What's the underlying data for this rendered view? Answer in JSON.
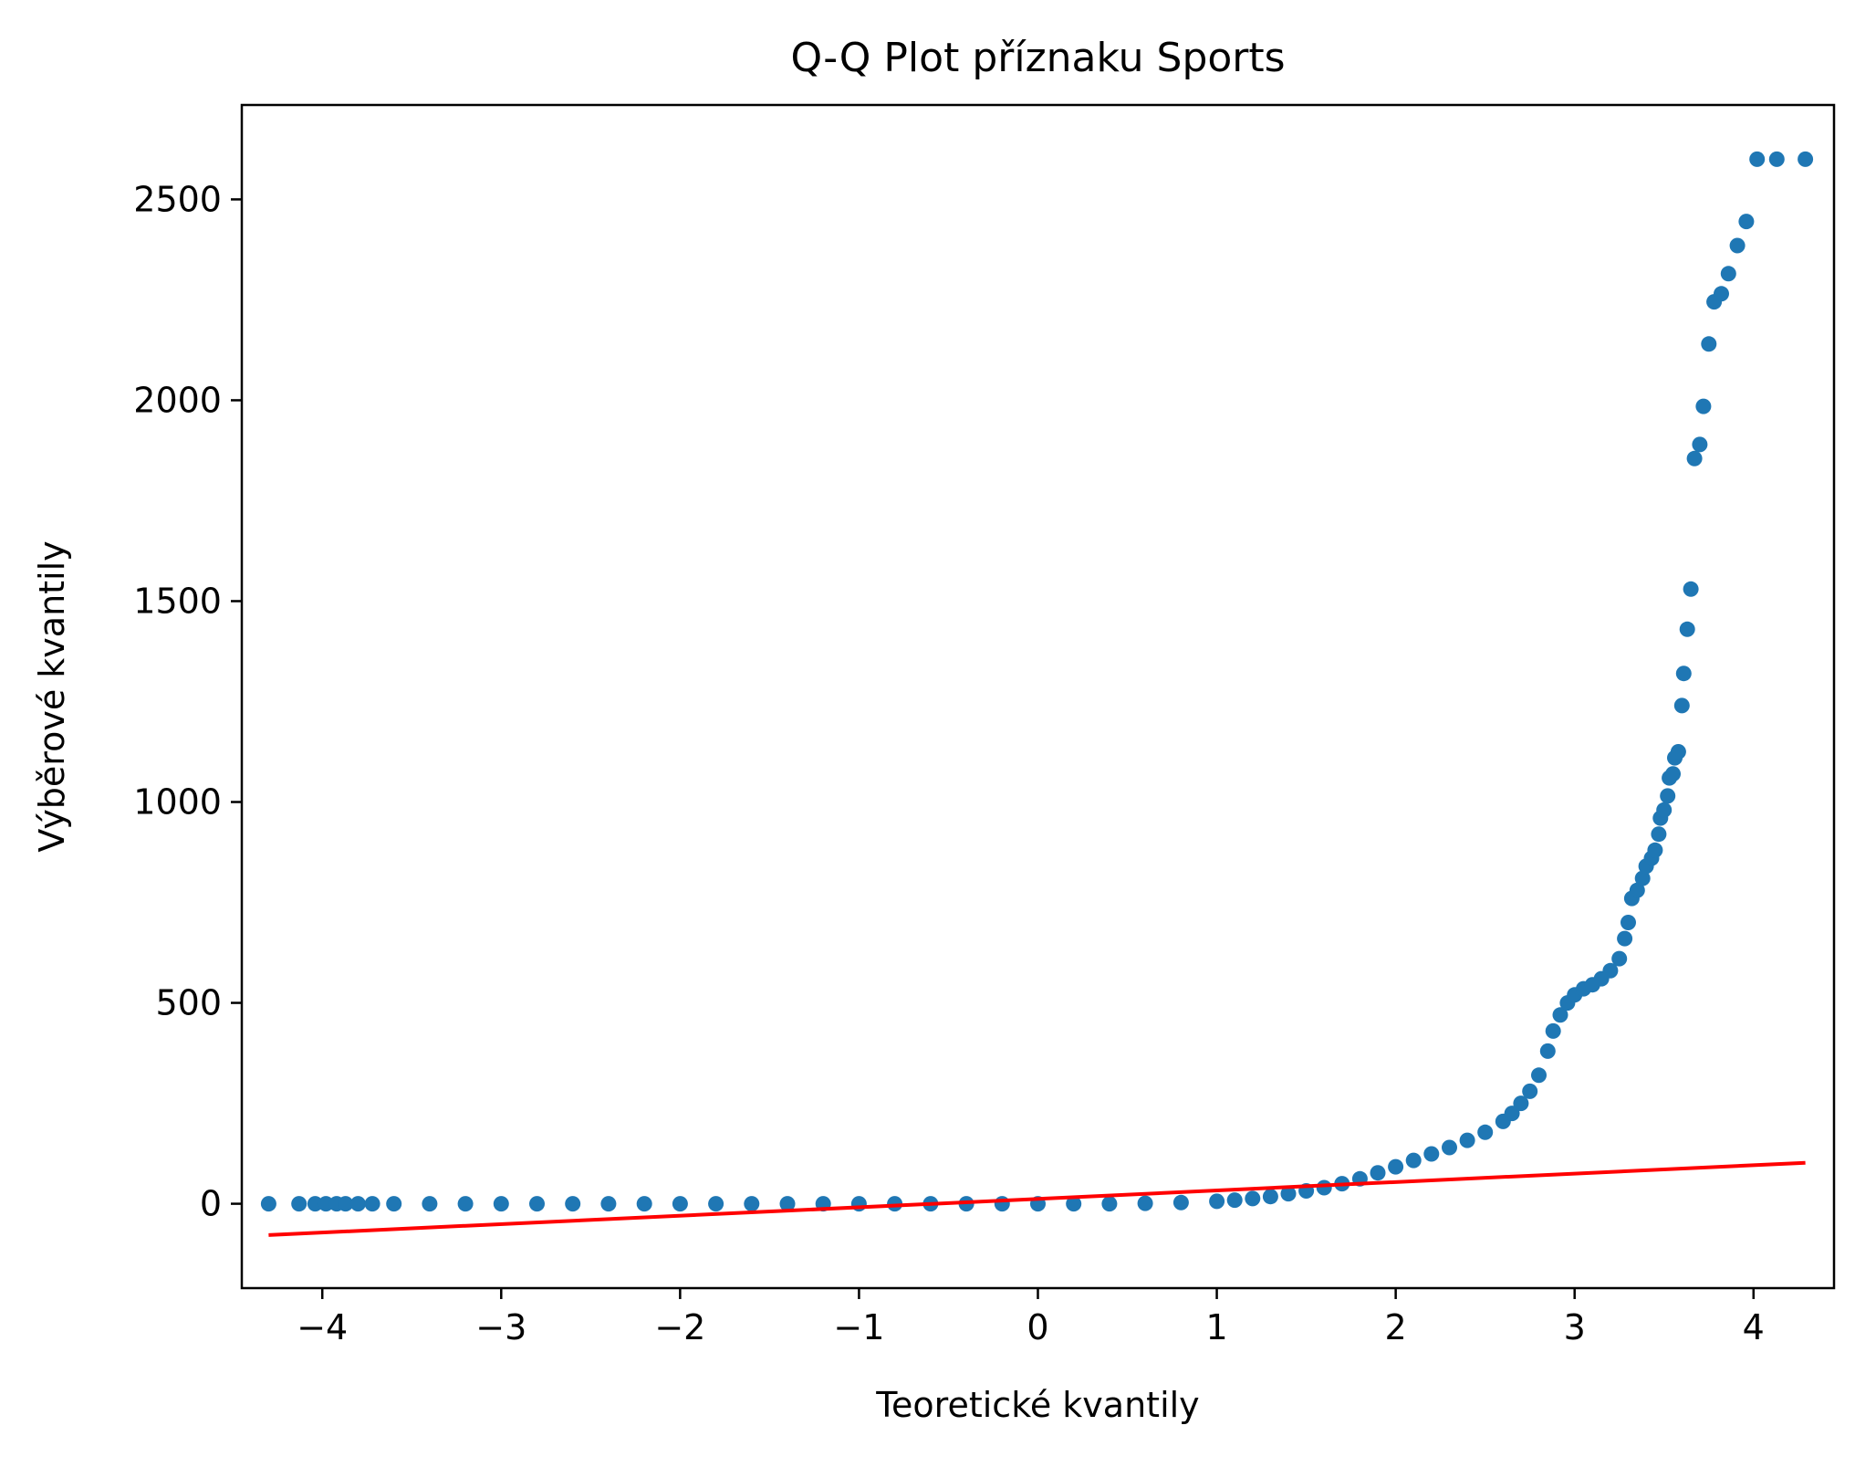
{
  "chart_data": {
    "type": "scatter",
    "title": "Q-Q Plot příznaku Sports",
    "xlabel": "Teoretické kvantily",
    "ylabel": "Výběrové kvantily",
    "xlim": [
      -4.45,
      4.45
    ],
    "ylim": [
      -210,
      2735
    ],
    "xticks": [
      -4,
      -3,
      -2,
      -1,
      0,
      1,
      2,
      3,
      4
    ],
    "xtick_labels": [
      "−4",
      "−3",
      "−2",
      "−1",
      "0",
      "1",
      "2",
      "3",
      "4"
    ],
    "yticks": [
      0,
      500,
      1000,
      1500,
      2000,
      2500
    ],
    "ytick_labels": [
      "0",
      "500",
      "1000",
      "1500",
      "2000",
      "2500"
    ],
    "grid": false,
    "legend": "none",
    "series": [
      {
        "kind": "points",
        "color": "#1f77b4",
        "points": [
          [
            -4.3,
            0
          ],
          [
            -4.13,
            0
          ],
          [
            -4.04,
            0
          ],
          [
            -3.98,
            0
          ],
          [
            -3.92,
            0
          ],
          [
            -3.87,
            0
          ],
          [
            -3.8,
            0
          ],
          [
            -3.72,
            0
          ],
          [
            -3.6,
            0
          ],
          [
            -3.4,
            0
          ],
          [
            -3.2,
            0
          ],
          [
            -3.0,
            0
          ],
          [
            -2.8,
            0
          ],
          [
            -2.6,
            0
          ],
          [
            -2.4,
            0
          ],
          [
            -2.2,
            0
          ],
          [
            -2.0,
            0
          ],
          [
            -1.8,
            0
          ],
          [
            -1.6,
            0
          ],
          [
            -1.4,
            0
          ],
          [
            -1.2,
            0
          ],
          [
            -1.0,
            0
          ],
          [
            -0.8,
            0
          ],
          [
            -0.6,
            0
          ],
          [
            -0.4,
            0
          ],
          [
            -0.2,
            0
          ],
          [
            0.0,
            0
          ],
          [
            0.2,
            0
          ],
          [
            0.4,
            0
          ],
          [
            0.6,
            1
          ],
          [
            0.8,
            3
          ],
          [
            1.0,
            6
          ],
          [
            1.1,
            9
          ],
          [
            1.2,
            13
          ],
          [
            1.3,
            18
          ],
          [
            1.4,
            25
          ],
          [
            1.5,
            32
          ],
          [
            1.6,
            40
          ],
          [
            1.7,
            50
          ],
          [
            1.8,
            62
          ],
          [
            1.9,
            77
          ],
          [
            2.0,
            92
          ],
          [
            2.1,
            108
          ],
          [
            2.2,
            124
          ],
          [
            2.3,
            140
          ],
          [
            2.4,
            158
          ],
          [
            2.5,
            178
          ],
          [
            2.6,
            205
          ],
          [
            2.65,
            225
          ],
          [
            2.7,
            250
          ],
          [
            2.75,
            280
          ],
          [
            2.8,
            320
          ],
          [
            2.85,
            380
          ],
          [
            2.88,
            430
          ],
          [
            2.92,
            470
          ],
          [
            2.96,
            500
          ],
          [
            3.0,
            520
          ],
          [
            3.05,
            535
          ],
          [
            3.1,
            545
          ],
          [
            3.15,
            560
          ],
          [
            3.2,
            580
          ],
          [
            3.25,
            610
          ],
          [
            3.28,
            660
          ],
          [
            3.3,
            700
          ],
          [
            3.32,
            760
          ],
          [
            3.35,
            780
          ],
          [
            3.38,
            810
          ],
          [
            3.4,
            840
          ],
          [
            3.43,
            860
          ],
          [
            3.45,
            880
          ],
          [
            3.47,
            920
          ],
          [
            3.48,
            960
          ],
          [
            3.5,
            980
          ],
          [
            3.52,
            1015
          ],
          [
            3.53,
            1060
          ],
          [
            3.55,
            1070
          ],
          [
            3.56,
            1110
          ],
          [
            3.58,
            1125
          ],
          [
            3.6,
            1240
          ],
          [
            3.61,
            1320
          ],
          [
            3.63,
            1430
          ],
          [
            3.65,
            1530
          ],
          [
            3.67,
            1855
          ],
          [
            3.7,
            1890
          ],
          [
            3.72,
            1985
          ],
          [
            3.75,
            2140
          ],
          [
            3.78,
            2245
          ],
          [
            3.82,
            2265
          ],
          [
            3.86,
            2315
          ],
          [
            3.91,
            2385
          ],
          [
            3.96,
            2445
          ],
          [
            4.02,
            2600
          ],
          [
            4.13,
            2600
          ],
          [
            4.29,
            2600
          ]
        ]
      },
      {
        "kind": "line",
        "color": "#ff0000",
        "points": [
          [
            -4.3,
            -78
          ],
          [
            4.29,
            102
          ]
        ]
      }
    ]
  }
}
